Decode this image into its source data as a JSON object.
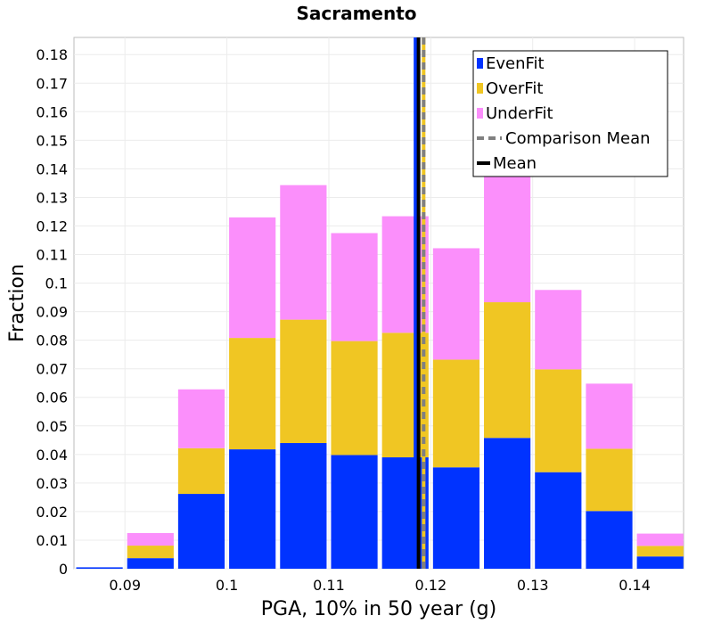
{
  "chart_data": {
    "type": "bar",
    "stacked": true,
    "title": "Sacramento",
    "xlabel": "PGA, 10% in 50 year (g)",
    "ylabel": "Fraction",
    "xlim": [
      0.085,
      0.1448
    ],
    "ylim": [
      0,
      0.186
    ],
    "x_ticks": [
      {
        "value": 0.09,
        "label": "0.09"
      },
      {
        "value": 0.1,
        "label": "0.1"
      },
      {
        "value": 0.11,
        "label": "0.11"
      },
      {
        "value": 0.12,
        "label": "0.12"
      },
      {
        "value": 0.13,
        "label": "0.13"
      },
      {
        "value": 0.14,
        "label": "0.14"
      }
    ],
    "y_ticks": [
      {
        "value": 0,
        "label": "0"
      },
      {
        "value": 0.01,
        "label": "0.01"
      },
      {
        "value": 0.02,
        "label": "0.02"
      },
      {
        "value": 0.03,
        "label": "0.03"
      },
      {
        "value": 0.04,
        "label": "0.04"
      },
      {
        "value": 0.05,
        "label": "0.05"
      },
      {
        "value": 0.06,
        "label": "0.06"
      },
      {
        "value": 0.07,
        "label": "0.07"
      },
      {
        "value": 0.08,
        "label": "0.08"
      },
      {
        "value": 0.09,
        "label": "0.09"
      },
      {
        "value": 0.1,
        "label": "0.1"
      },
      {
        "value": 0.11,
        "label": "0.11"
      },
      {
        "value": 0.12,
        "label": "0.12"
      },
      {
        "value": 0.13,
        "label": "0.13"
      },
      {
        "value": 0.14,
        "label": "0.14"
      },
      {
        "value": 0.15,
        "label": "0.15"
      },
      {
        "value": 0.16,
        "label": "0.16"
      },
      {
        "value": 0.17,
        "label": "0.17"
      },
      {
        "value": 0.18,
        "label": "0.18"
      }
    ],
    "bin_width": 0.005,
    "x": [
      0.0875,
      0.0925,
      0.0975,
      0.1025,
      0.1075,
      0.1125,
      0.1175,
      0.1225,
      0.1275,
      0.1325,
      0.1375,
      0.1425
    ],
    "series": [
      {
        "name": "EvenFit",
        "color": "#0033ff",
        "values": [
          0.0005,
          0.0037,
          0.0262,
          0.0418,
          0.044,
          0.0398,
          0.039,
          0.0355,
          0.0458,
          0.0338,
          0.0202,
          0.0043
        ]
      },
      {
        "name": "OverFit",
        "color": "#f0c623",
        "values": [
          0.0,
          0.0044,
          0.016,
          0.039,
          0.0432,
          0.0399,
          0.0436,
          0.0377,
          0.0475,
          0.036,
          0.0218,
          0.0037
        ]
      },
      {
        "name": "UnderFit",
        "color": "#fb8ffb",
        "values": [
          0.0,
          0.0044,
          0.0206,
          0.0422,
          0.0471,
          0.0378,
          0.0408,
          0.039,
          0.0478,
          0.0278,
          0.0228,
          0.0043
        ]
      }
    ],
    "vertical_lines": [
      {
        "name": "EvenFit",
        "x": 0.1185,
        "color": "#0033ff",
        "style": "solid"
      },
      {
        "name": "OverFit",
        "x": 0.1193,
        "color": "#f0c623",
        "style": "solid"
      },
      {
        "name": "Comparison Mean",
        "x": 0.1193,
        "color": "#808080",
        "style": "dashed"
      },
      {
        "name": "Mean",
        "x": 0.1188,
        "color": "#000000",
        "style": "solid"
      }
    ],
    "legend": {
      "position": "top-right",
      "entries": [
        {
          "label": "EvenFit",
          "color": "#0033ff",
          "marker": "square"
        },
        {
          "label": "OverFit",
          "color": "#f0c623",
          "marker": "square"
        },
        {
          "label": "UnderFit",
          "color": "#fb8ffb",
          "marker": "square"
        },
        {
          "label": "Comparison Mean",
          "color": "#808080",
          "marker": "dashed-line"
        },
        {
          "label": "Mean",
          "color": "#000000",
          "marker": "line"
        }
      ]
    },
    "grid": true
  }
}
